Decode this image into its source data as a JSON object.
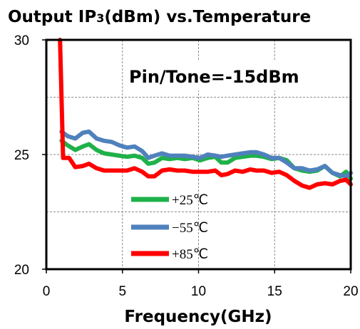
{
  "chart_data": {
    "type": "line",
    "title_main": "Output IP",
    "title_sub": "3",
    "title_rest": "(dBm) vs.Temperature",
    "annotation": "Pin/Tone=-15dBm",
    "xlabel": "Frequency(GHz)",
    "ylabel": "",
    "xlim": [
      0,
      20
    ],
    "ylim": [
      20,
      30
    ],
    "x_ticks": [
      "0",
      "5",
      "10",
      "15",
      "20"
    ],
    "y_ticks": [
      "20",
      "25",
      "30"
    ],
    "grid": true,
    "legend_position": "bottom-left",
    "series": [
      {
        "name": "+25℃",
        "color": "#1fb14a",
        "points": [
          [
            1.0,
            25.6
          ],
          [
            1.4,
            25.4
          ],
          [
            1.9,
            25.2
          ],
          [
            2.4,
            25.35
          ],
          [
            2.8,
            25.45
          ],
          [
            3.3,
            25.2
          ],
          [
            3.8,
            25.05
          ],
          [
            4.3,
            25.0
          ],
          [
            4.8,
            24.95
          ],
          [
            5.3,
            24.9
          ],
          [
            5.8,
            24.95
          ],
          [
            6.3,
            24.85
          ],
          [
            6.7,
            24.6
          ],
          [
            7.1,
            24.65
          ],
          [
            7.6,
            24.85
          ],
          [
            8.1,
            24.8
          ],
          [
            8.6,
            24.85
          ],
          [
            9.1,
            24.8
          ],
          [
            9.6,
            24.85
          ],
          [
            10.1,
            24.75
          ],
          [
            10.6,
            24.85
          ],
          [
            11.1,
            24.9
          ],
          [
            11.5,
            24.65
          ],
          [
            11.9,
            24.65
          ],
          [
            12.4,
            24.85
          ],
          [
            12.9,
            24.9
          ],
          [
            13.4,
            24.95
          ],
          [
            13.8,
            24.95
          ],
          [
            14.3,
            24.9
          ],
          [
            14.8,
            24.8
          ],
          [
            15.3,
            24.85
          ],
          [
            15.8,
            24.75
          ],
          [
            16.3,
            24.4
          ],
          [
            16.8,
            24.3
          ],
          [
            17.3,
            24.25
          ],
          [
            17.8,
            24.3
          ],
          [
            18.3,
            24.5
          ],
          [
            18.8,
            24.2
          ],
          [
            19.3,
            24.05
          ],
          [
            19.7,
            24.25
          ],
          [
            20.0,
            23.95
          ]
        ]
      },
      {
        "name": "−55℃",
        "color": "#4f81bd",
        "points": [
          [
            1.0,
            26.0
          ],
          [
            1.4,
            25.8
          ],
          [
            1.9,
            25.7
          ],
          [
            2.4,
            25.95
          ],
          [
            2.8,
            26.0
          ],
          [
            3.3,
            25.7
          ],
          [
            3.8,
            25.6
          ],
          [
            4.3,
            25.55
          ],
          [
            4.8,
            25.4
          ],
          [
            5.3,
            25.3
          ],
          [
            5.8,
            25.35
          ],
          [
            6.3,
            25.15
          ],
          [
            6.7,
            24.85
          ],
          [
            7.1,
            24.95
          ],
          [
            7.6,
            25.05
          ],
          [
            8.1,
            24.95
          ],
          [
            8.6,
            24.95
          ],
          [
            9.1,
            24.95
          ],
          [
            9.6,
            24.9
          ],
          [
            10.1,
            24.85
          ],
          [
            10.6,
            25.0
          ],
          [
            11.1,
            24.95
          ],
          [
            11.5,
            24.9
          ],
          [
            11.9,
            24.95
          ],
          [
            12.4,
            25.0
          ],
          [
            12.9,
            25.05
          ],
          [
            13.4,
            25.1
          ],
          [
            13.8,
            25.1
          ],
          [
            14.3,
            25.0
          ],
          [
            14.8,
            24.85
          ],
          [
            15.3,
            24.85
          ],
          [
            15.8,
            24.65
          ],
          [
            16.3,
            24.4
          ],
          [
            16.8,
            24.4
          ],
          [
            17.3,
            24.3
          ],
          [
            17.8,
            24.35
          ],
          [
            18.3,
            24.5
          ],
          [
            18.8,
            24.2
          ],
          [
            19.3,
            24.1
          ],
          [
            19.7,
            24.05
          ],
          [
            20.0,
            24.2
          ]
        ]
      },
      {
        "name": "+85℃",
        "color": "#ff0000",
        "points": [
          [
            0.9,
            30.0
          ],
          [
            1.1,
            24.85
          ],
          [
            1.5,
            24.85
          ],
          [
            1.9,
            24.45
          ],
          [
            2.4,
            24.5
          ],
          [
            2.8,
            24.6
          ],
          [
            3.3,
            24.4
          ],
          [
            3.8,
            24.3
          ],
          [
            4.3,
            24.3
          ],
          [
            4.8,
            24.3
          ],
          [
            5.3,
            24.3
          ],
          [
            5.8,
            24.4
          ],
          [
            6.3,
            24.25
          ],
          [
            6.7,
            24.05
          ],
          [
            7.1,
            24.05
          ],
          [
            7.6,
            24.3
          ],
          [
            8.1,
            24.35
          ],
          [
            8.6,
            24.3
          ],
          [
            9.1,
            24.3
          ],
          [
            9.6,
            24.25
          ],
          [
            10.1,
            24.25
          ],
          [
            10.6,
            24.25
          ],
          [
            11.1,
            24.3
          ],
          [
            11.5,
            24.1
          ],
          [
            11.9,
            24.15
          ],
          [
            12.4,
            24.3
          ],
          [
            12.9,
            24.25
          ],
          [
            13.4,
            24.35
          ],
          [
            13.8,
            24.3
          ],
          [
            14.3,
            24.3
          ],
          [
            14.8,
            24.2
          ],
          [
            15.3,
            24.25
          ],
          [
            15.8,
            24.1
          ],
          [
            16.3,
            23.85
          ],
          [
            16.8,
            23.65
          ],
          [
            17.3,
            23.55
          ],
          [
            17.8,
            23.7
          ],
          [
            18.3,
            23.75
          ],
          [
            18.8,
            23.7
          ],
          [
            19.3,
            23.85
          ],
          [
            19.7,
            23.9
          ],
          [
            20.0,
            23.7
          ]
        ]
      }
    ]
  }
}
